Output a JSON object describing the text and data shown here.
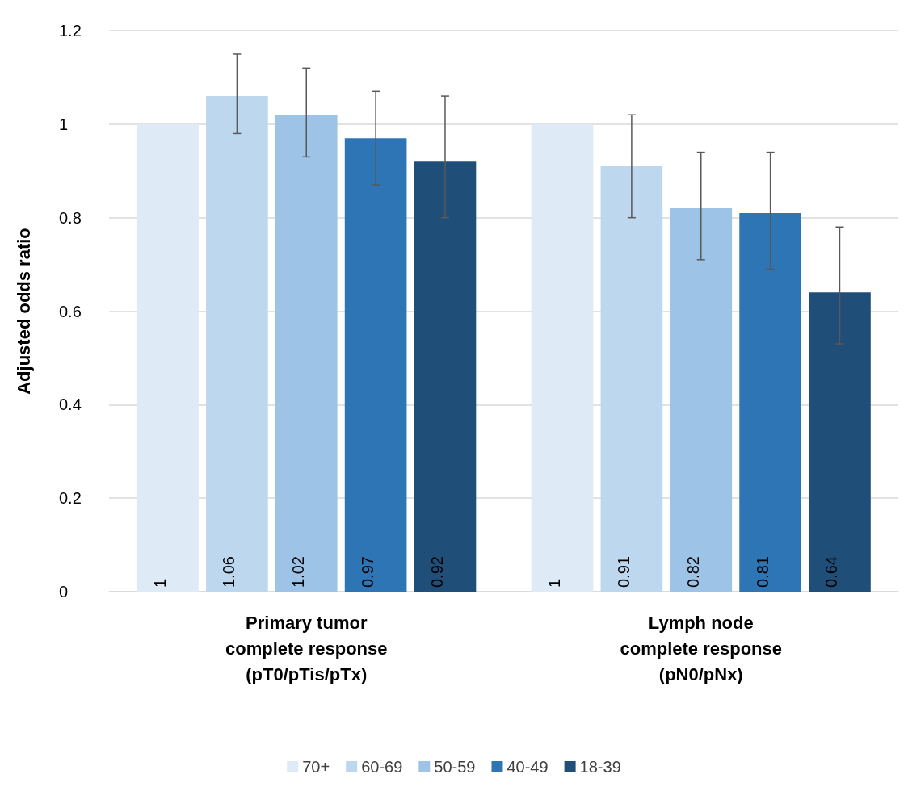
{
  "chart_data": {
    "type": "bar",
    "ylabel": "Adjusted odds ratio",
    "categories": [
      "Primary tumor\ncomplete response\n(pT0/pTis/pTx)",
      "Lymph node\ncomplete response\n(pN0/pNx)"
    ],
    "series": [
      {
        "name": "70+",
        "color": "#deeaf6",
        "values": [
          1,
          1
        ],
        "errors": [
          null,
          null
        ]
      },
      {
        "name": "60-69",
        "color": "#bdd7ee",
        "values": [
          1.06,
          0.91
        ],
        "errors": [
          [
            0.98,
            1.15
          ],
          [
            0.8,
            1.02
          ]
        ]
      },
      {
        "name": "50-59",
        "color": "#9dc3e6",
        "values": [
          1.02,
          0.82
        ],
        "errors": [
          [
            0.93,
            1.12
          ],
          [
            0.71,
            0.94
          ]
        ]
      },
      {
        "name": "40-49",
        "color": "#2e75b6",
        "values": [
          0.97,
          0.81
        ],
        "errors": [
          [
            0.87,
            1.07
          ],
          [
            0.69,
            0.94
          ]
        ]
      },
      {
        "name": "18-39",
        "color": "#1f4e79",
        "values": [
          0.92,
          0.64
        ],
        "errors": [
          [
            0.8,
            1.06
          ],
          [
            0.53,
            0.78
          ]
        ]
      }
    ],
    "ylim": [
      0,
      1.2
    ],
    "yticks": [
      0,
      0.2,
      0.4,
      0.6,
      0.8,
      1,
      1.2
    ],
    "grid": "y",
    "legend": "bottom",
    "data_labels": true
  }
}
